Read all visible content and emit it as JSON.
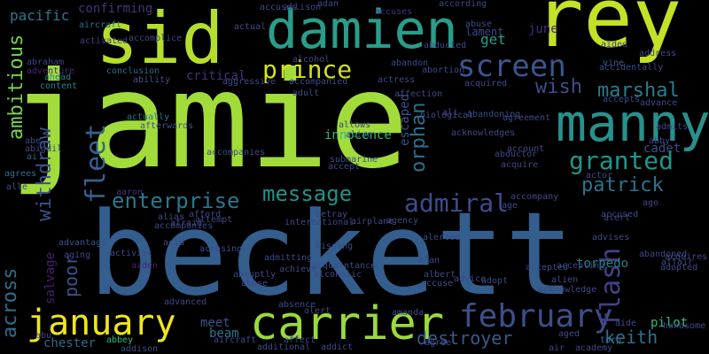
{
  "words": [
    {
      "text": "jamie",
      "color": "#a2dc3a"
    },
    {
      "text": "beckett",
      "color": "#335e8e"
    },
    {
      "text": "rey",
      "color": "#c4e126"
    },
    {
      "text": "sid",
      "color": "#b5de2b"
    },
    {
      "text": "damien",
      "color": "#2a9d8a"
    },
    {
      "text": "manny",
      "color": "#29908c"
    },
    {
      "text": "carrier",
      "color": "#9bd93c"
    },
    {
      "text": "january",
      "color": "#efe51c"
    },
    {
      "text": "screen",
      "color": "#3c5590"
    },
    {
      "text": "fleet",
      "color": "#34628e"
    },
    {
      "text": "february",
      "color": "#3c4f8a"
    },
    {
      "text": "prince",
      "color": "#d2e21b"
    },
    {
      "text": "enterprise",
      "color": "#2a788e"
    },
    {
      "text": "message",
      "color": "#20928c"
    },
    {
      "text": "admiral",
      "color": "#3e4c8a"
    },
    {
      "text": "granted",
      "color": "#1f968b"
    },
    {
      "text": "patrick",
      "color": "#2b748e"
    },
    {
      "text": "flash",
      "color": "#424086"
    },
    {
      "text": "marshal",
      "color": "#287d8e"
    },
    {
      "text": "wish",
      "color": "#3d4e8a"
    },
    {
      "text": "orphan",
      "color": "#2c718e"
    },
    {
      "text": "ambitious",
      "color": "#7ad151"
    },
    {
      "text": "withdraw",
      "color": "#3b528b"
    },
    {
      "text": "across",
      "color": "#2e6e8e"
    },
    {
      "text": "destroyer",
      "color": "#38598c"
    },
    {
      "text": "keith",
      "color": "#2d708e"
    },
    {
      "text": "poor",
      "color": "#3c508b"
    },
    {
      "text": "pacific",
      "color": "#2a768e"
    },
    {
      "text": "confirming",
      "color": "#46327e"
    },
    {
      "text": "critical",
      "color": "#472f7d"
    },
    {
      "text": "meet",
      "color": "#3b528b"
    },
    {
      "text": "beam",
      "color": "#2a768e"
    },
    {
      "text": "chester",
      "color": "#31688e"
    },
    {
      "text": "torpedo",
      "color": "#26828e"
    },
    {
      "text": "pilot",
      "color": "#37b878"
    },
    {
      "text": "get",
      "color": "#20a386"
    },
    {
      "text": "june",
      "color": "#482979"
    },
    {
      "text": "escaped",
      "color": "#3b528b"
    },
    {
      "text": "innocence",
      "color": "#35b779"
    },
    {
      "text": "salvage",
      "color": "#481f70"
    },
    {
      "text": "cadet",
      "color": "#3d4d8a"
    },
    {
      "text": "lament",
      "color": "#3f4788"
    },
    {
      "text": "accuses",
      "color": "#46337f"
    },
    {
      "text": "vine",
      "color": "#355f8d"
    },
    {
      "text": "abbey",
      "color": "#35b779"
    },
    {
      "text": "torp",
      "color": "#2c718e"
    },
    {
      "text": "accuse",
      "color": "#3b528b"
    },
    {
      "text": "accomplice",
      "color": "#3e4989"
    },
    {
      "text": "conclusion",
      "color": "#31688e"
    },
    {
      "text": "abraham",
      "color": "#3f4889"
    },
    {
      "text": "adventure",
      "color": "#482475"
    },
    {
      "text": "aircraft",
      "color": "#2d718e"
    },
    {
      "text": "activated",
      "color": "#433e85"
    },
    {
      "text": "ability",
      "color": "#3b528b"
    },
    {
      "text": "ahead",
      "color": "#26828e"
    },
    {
      "text": "content",
      "color": "#24868e"
    },
    {
      "text": "actually",
      "color": "#2a788e"
    },
    {
      "text": "afterwards",
      "color": "#3a548c"
    },
    {
      "text": "abe",
      "color": "#3e4a89"
    },
    {
      "text": "abigail",
      "color": "#3e4a89"
    },
    {
      "text": "ai",
      "color": "#31688e"
    },
    {
      "text": "agrees",
      "color": "#2c718e"
    },
    {
      "text": "alle",
      "color": "#3e4989"
    },
    {
      "text": "aaron",
      "color": "#453581"
    },
    {
      "text": "alias",
      "color": "#3b528b"
    },
    {
      "text": "afford",
      "color": "#3e4989"
    },
    {
      "text": "accompanies",
      "color": "#3f4788"
    },
    {
      "text": "acid",
      "color": "#3e4a89"
    },
    {
      "text": "advantage",
      "color": "#3b528b"
    },
    {
      "text": "aging",
      "color": "#3e4989"
    },
    {
      "text": "aiden",
      "color": "#482071"
    },
    {
      "text": "activist",
      "color": "#3f4788"
    },
    {
      "text": "accusing",
      "color": "#3e4989"
    },
    {
      "text": "abruptly",
      "color": "#3e4989"
    },
    {
      "text": "abuse",
      "color": "#3f4788"
    },
    {
      "text": "advanced",
      "color": "#3e4989"
    },
    {
      "text": "absence",
      "color": "#3e4989"
    },
    {
      "text": "alert",
      "color": "#3f4788"
    },
    {
      "text": "allison",
      "color": "#3e4989"
    },
    {
      "text": "aircraft",
      "color": "#3e4a89"
    },
    {
      "text": "addison",
      "color": "#3e4989"
    },
    {
      "text": "additional",
      "color": "#3e4989"
    },
    {
      "text": "affect",
      "color": "#3e4989"
    },
    {
      "text": "achieve",
      "color": "#3e4989"
    },
    {
      "text": "acquaintance",
      "color": "#3e4989"
    },
    {
      "text": "alcoholic",
      "color": "#3e4989"
    },
    {
      "text": "kissing",
      "color": "#3e4989"
    },
    {
      "text": "betray",
      "color": "#3e4989"
    },
    {
      "text": "airplane",
      "color": "#3e4989"
    },
    {
      "text": "agency",
      "color": "#3e4989"
    },
    {
      "text": "alan",
      "color": "#3e4989"
    },
    {
      "text": "alerted",
      "color": "#3e4989"
    },
    {
      "text": "advice",
      "color": "#3e4989"
    },
    {
      "text": "adopt",
      "color": "#3e4989"
    },
    {
      "text": "accepted",
      "color": "#3e4989"
    },
    {
      "text": "accused",
      "color": "#3e4989"
    },
    {
      "text": "advises",
      "color": "#3e4989"
    },
    {
      "text": "abandoned",
      "color": "#3e4989"
    },
    {
      "text": "adopted",
      "color": "#3e4989"
    },
    {
      "text": "affair",
      "color": "#3e4989"
    },
    {
      "text": "acquires",
      "color": "#3e4989"
    },
    {
      "text": "accompany",
      "color": "#3e4989"
    },
    {
      "text": "acknowledge",
      "color": "#3e4989"
    },
    {
      "text": "alien",
      "color": "#3e4989"
    },
    {
      "text": "aide",
      "color": "#3e4989"
    },
    {
      "text": "handsome",
      "color": "#3e4989"
    },
    {
      "text": "aided",
      "color": "#3e4989"
    },
    {
      "text": "address",
      "color": "#3e4989"
    },
    {
      "text": "accidentally",
      "color": "#3e4989"
    },
    {
      "text": "admits",
      "color": "#3e4989"
    },
    {
      "text": "advance",
      "color": "#3e4989"
    },
    {
      "text": "accepts",
      "color": "#3e4989"
    },
    {
      "text": "abby",
      "color": "#3e4989"
    },
    {
      "text": "actor",
      "color": "#3e4989"
    },
    {
      "text": "acquire",
      "color": "#3e4989"
    },
    {
      "text": "account",
      "color": "#3e4989"
    },
    {
      "text": "agreement",
      "color": "#3e4989"
    },
    {
      "text": "abandoning",
      "color": "#3e4989"
    },
    {
      "text": "affection",
      "color": "#3e4989"
    },
    {
      "text": "acquired",
      "color": "#3e4989"
    },
    {
      "text": "abuse",
      "color": "#3e4989"
    },
    {
      "text": "abducted",
      "color": "#3e4989"
    },
    {
      "text": "abandon",
      "color": "#3e4989"
    },
    {
      "text": "abortion",
      "color": "#3e4989"
    },
    {
      "text": "according",
      "color": "#3e4989"
    },
    {
      "text": "adan",
      "color": "#3e4989"
    },
    {
      "text": "accuses",
      "color": "#3e4989"
    },
    {
      "text": "actual",
      "color": "#3e4989"
    },
    {
      "text": "alcohol",
      "color": "#3e4989"
    },
    {
      "text": "aggressive",
      "color": "#3e4989"
    },
    {
      "text": "accompanied",
      "color": "#3e4989"
    },
    {
      "text": "adult",
      "color": "#3e4989"
    },
    {
      "text": "actress",
      "color": "#3e4989"
    },
    {
      "text": "biological",
      "color": "#3e4989"
    },
    {
      "text": "alive",
      "color": "#3e4989"
    },
    {
      "text": "allows",
      "color": "#3e4989"
    },
    {
      "text": "accept",
      "color": "#3e4989"
    },
    {
      "text": "submarine",
      "color": "#3e4989"
    },
    {
      "text": "attempt",
      "color": "#3e4989"
    },
    {
      "text": "international",
      "color": "#3e4989"
    },
    {
      "text": "air",
      "color": "#3e4989"
    },
    {
      "text": "academy",
      "color": "#3e4989"
    },
    {
      "text": "addict",
      "color": "#3e4989"
    },
    {
      "text": "agree",
      "color": "#3e4989"
    },
    {
      "text": "accepting",
      "color": "#3e4989"
    },
    {
      "text": "ago",
      "color": "#3e4989"
    },
    {
      "text": "age",
      "color": "#3e4989"
    },
    {
      "text": "aged",
      "color": "#3e4989"
    },
    {
      "text": "alert",
      "color": "#3e4989"
    },
    {
      "text": "abu",
      "color": "#3e4989"
    },
    {
      "text": "admitting",
      "color": "#3e4989"
    },
    {
      "text": "afraid",
      "color": "#3e4989"
    },
    {
      "text": "accompanies",
      "color": "#3e4989"
    },
    {
      "text": "acknowledges",
      "color": "#3e4989"
    },
    {
      "text": "abductor",
      "color": "#3e4989"
    },
    {
      "text": "amanda",
      "color": "#3e4989"
    },
    {
      "text": "albert",
      "color": "#3e4989"
    },
    {
      "text": "ali",
      "color": "#3e4989"
    }
  ]
}
